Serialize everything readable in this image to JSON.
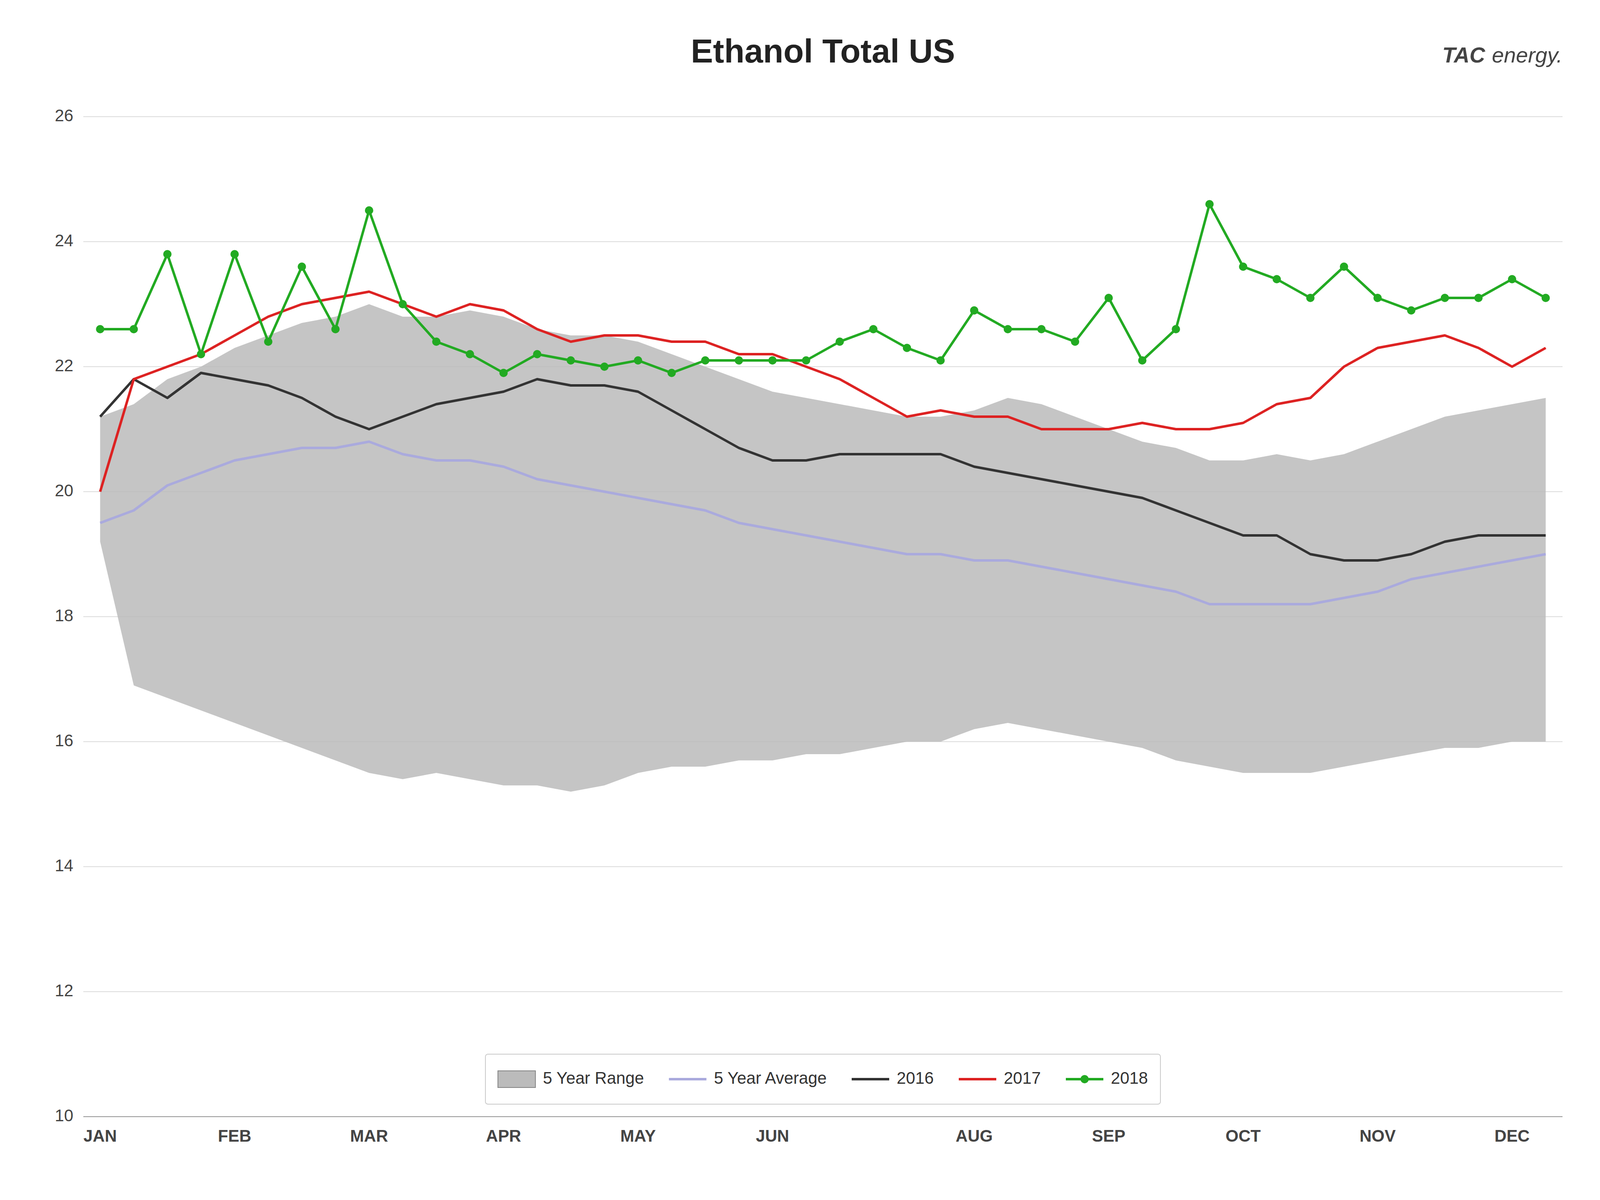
{
  "chart_data": {
    "type": "line",
    "title": "Ethanol Total US",
    "annotations": [
      "TAC",
      "energy."
    ],
    "categories": [
      "JAN",
      null,
      null,
      null,
      "FEB",
      null,
      null,
      null,
      "MAR",
      null,
      null,
      null,
      "APR",
      null,
      null,
      null,
      "MAY",
      null,
      null,
      null,
      "JUN",
      null,
      null,
      null,
      null,
      null,
      "AUG",
      null,
      null,
      null,
      "SEP",
      null,
      null,
      null,
      "OCT",
      null,
      null,
      null,
      "NOV",
      null,
      null,
      null,
      "DEC",
      null
    ],
    "series": [
      {
        "name": "5 Year Range",
        "type": "range",
        "color": "#bbbbbb",
        "lower": [
          19.2,
          16.9,
          16.7,
          16.5,
          16.3,
          16.1,
          15.9,
          15.7,
          15.5,
          15.4,
          15.5,
          15.4,
          15.3,
          15.3,
          15.2,
          15.3,
          15.5,
          15.6,
          15.6,
          15.7,
          15.7,
          15.8,
          15.8,
          15.9,
          16.0,
          16.0,
          16.2,
          16.3,
          16.2,
          16.1,
          16.0,
          15.9,
          15.7,
          15.6,
          15.5,
          15.5,
          15.5,
          15.6,
          15.7,
          15.8,
          15.9,
          15.9,
          16.0,
          16.0
        ],
        "upper": [
          21.2,
          21.4,
          21.8,
          22.0,
          22.3,
          22.5,
          22.7,
          22.8,
          23.0,
          22.8,
          22.8,
          22.9,
          22.8,
          22.6,
          22.5,
          22.5,
          22.4,
          22.2,
          22.0,
          21.8,
          21.6,
          21.5,
          21.4,
          21.3,
          21.2,
          21.2,
          21.3,
          21.5,
          21.4,
          21.2,
          21.0,
          20.8,
          20.7,
          20.5,
          20.5,
          20.6,
          20.5,
          20.6,
          20.8,
          21.0,
          21.2,
          21.3,
          21.4,
          21.5
        ]
      },
      {
        "name": "5 Year Average",
        "type": "line",
        "color": "#aaaadd",
        "values": [
          19.5,
          19.7,
          20.1,
          20.3,
          20.5,
          20.6,
          20.7,
          20.7,
          20.8,
          20.6,
          20.5,
          20.5,
          20.4,
          20.2,
          20.1,
          20.0,
          19.9,
          19.8,
          19.7,
          19.5,
          19.4,
          19.3,
          19.2,
          19.1,
          19.0,
          19.0,
          18.9,
          18.9,
          18.8,
          18.7,
          18.6,
          18.5,
          18.4,
          18.2,
          18.2,
          18.2,
          18.2,
          18.3,
          18.4,
          18.6,
          18.7,
          18.8,
          18.9,
          19.0
        ]
      },
      {
        "name": "2016",
        "type": "line",
        "color": "#333333",
        "values": [
          21.2,
          21.8,
          21.5,
          21.9,
          21.8,
          21.7,
          21.5,
          21.2,
          21.0,
          21.2,
          21.4,
          21.5,
          21.6,
          21.8,
          21.7,
          21.7,
          21.6,
          21.3,
          21.0,
          20.7,
          20.5,
          20.5,
          20.6,
          20.6,
          20.6,
          20.6,
          20.4,
          20.3,
          20.2,
          20.1,
          20.0,
          19.9,
          19.7,
          19.5,
          19.3,
          19.3,
          19.0,
          18.9,
          18.9,
          19.0,
          19.2,
          19.3,
          19.3,
          19.3
        ]
      },
      {
        "name": "2017",
        "type": "line",
        "color": "#dd2222",
        "values": [
          20.0,
          21.8,
          22.0,
          22.2,
          22.5,
          22.8,
          23.0,
          23.1,
          23.2,
          23.0,
          22.8,
          23.0,
          22.9,
          22.6,
          22.4,
          22.5,
          22.5,
          22.4,
          22.4,
          22.2,
          22.2,
          22.0,
          21.8,
          21.5,
          21.2,
          21.3,
          21.2,
          21.2,
          21.0,
          21.0,
          21.0,
          21.1,
          21.0,
          21.0,
          21.1,
          21.4,
          21.5,
          22.0,
          22.3,
          22.4,
          22.5,
          22.3,
          22.0,
          22.3
        ]
      },
      {
        "name": "2018",
        "type": "line",
        "color": "#22aa22",
        "marker": "circle",
        "values": [
          22.6,
          22.6,
          23.8,
          22.2,
          23.8,
          22.4,
          23.6,
          22.6,
          24.5,
          23.0,
          22.4,
          22.2,
          21.9,
          22.2,
          22.1,
          22.0,
          22.1,
          21.9,
          22.1,
          22.1,
          22.1,
          22.1,
          22.4,
          22.6,
          22.3,
          22.1,
          22.9,
          22.6,
          22.6,
          22.4,
          23.1,
          22.1,
          22.6,
          24.6,
          23.6,
          23.4,
          23.1,
          23.6,
          23.1,
          22.9,
          23.1,
          23.1,
          23.4,
          23.1
        ]
      }
    ],
    "ylim": [
      10,
      26
    ],
    "yticks": [
      10,
      12,
      14,
      16,
      18,
      20,
      22,
      24,
      26
    ],
    "grid": true,
    "legend": "lower center"
  }
}
